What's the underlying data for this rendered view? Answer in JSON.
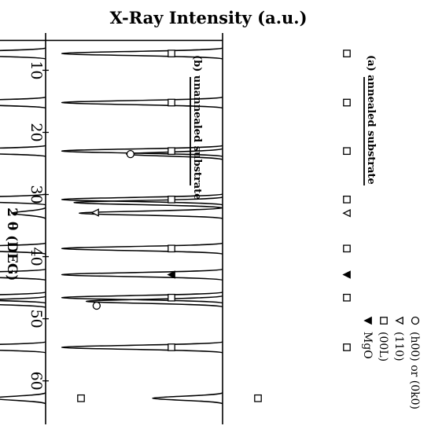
{
  "chart_data": {
    "type": "line",
    "title": "X-Ray Intensity (a.u.)",
    "xlabel": "2 θ  (DEG)",
    "ylabel": "",
    "xlim": [
      4,
      67
    ],
    "xticks": [
      10,
      20,
      30,
      40,
      50,
      60
    ],
    "orientation": "rotated-90-clockwise",
    "legend": {
      "position": "right",
      "entries": [
        {
          "marker": "circle",
          "label": "(h00) or (0k0)"
        },
        {
          "marker": "triangle-open",
          "label": "(110)"
        },
        {
          "marker": "square",
          "label": "(00L)"
        },
        {
          "marker": "triangle-filled",
          "label": "MgO"
        }
      ]
    },
    "series": [
      {
        "name": "(a) annealed substrate",
        "peaks": [
          {
            "x": 7.3,
            "height": 0.92
          },
          {
            "x": 15.2,
            "height": 0.92
          },
          {
            "x": 23.0,
            "height": 0.92
          },
          {
            "x": 23.5,
            "height": 0.55
          },
          {
            "x": 30.8,
            "height": 0.92
          },
          {
            "x": 31.3,
            "height": 0.85
          },
          {
            "x": 33.0,
            "height": 0.82
          },
          {
            "x": 38.7,
            "height": 0.92
          },
          {
            "x": 42.9,
            "height": 0.92
          },
          {
            "x": 46.6,
            "height": 0.92
          },
          {
            "x": 47.2,
            "height": 0.78
          },
          {
            "x": 54.6,
            "height": 0.92
          },
          {
            "x": 62.8,
            "height": 0.4
          }
        ],
        "markers": [
          {
            "x": 7.3,
            "type": "square"
          },
          {
            "x": 15.2,
            "type": "square"
          },
          {
            "x": 23.0,
            "type": "square"
          },
          {
            "x": 23.5,
            "type": "circle"
          },
          {
            "x": 30.8,
            "type": "square"
          },
          {
            "x": 33.0,
            "type": "triangle-open"
          },
          {
            "x": 38.7,
            "type": "square"
          },
          {
            "x": 42.9,
            "type": "triangle-filled"
          },
          {
            "x": 46.6,
            "type": "square"
          },
          {
            "x": 47.9,
            "type": "circle"
          },
          {
            "x": 54.6,
            "type": "square"
          },
          {
            "x": 62.8,
            "type": "square"
          }
        ]
      },
      {
        "name": "(b) unannealed substrate",
        "peaks": [
          {
            "x": 7.3,
            "height": 0.92
          },
          {
            "x": 15.2,
            "height": 0.92
          },
          {
            "x": 23.0,
            "height": 0.92
          },
          {
            "x": 30.8,
            "height": 0.92
          },
          {
            "x": 33.0,
            "height": 0.2
          },
          {
            "x": 38.7,
            "height": 0.92
          },
          {
            "x": 42.9,
            "height": 0.92
          },
          {
            "x": 46.6,
            "height": 0.92
          },
          {
            "x": 47.3,
            "height": 0.75
          },
          {
            "x": 54.6,
            "height": 0.92
          },
          {
            "x": 62.8,
            "height": 0.32
          }
        ],
        "markers": [
          {
            "x": 7.3,
            "type": "square"
          },
          {
            "x": 15.2,
            "type": "square"
          },
          {
            "x": 23.0,
            "type": "square"
          },
          {
            "x": 30.8,
            "type": "square"
          },
          {
            "x": 32.9,
            "type": "triangle-open"
          },
          {
            "x": 38.7,
            "type": "square"
          },
          {
            "x": 42.9,
            "type": "triangle-filled"
          },
          {
            "x": 46.6,
            "type": "square"
          },
          {
            "x": 47.8,
            "type": "circle"
          },
          {
            "x": 54.6,
            "type": "square"
          },
          {
            "x": 62.8,
            "type": "square"
          }
        ]
      }
    ]
  }
}
